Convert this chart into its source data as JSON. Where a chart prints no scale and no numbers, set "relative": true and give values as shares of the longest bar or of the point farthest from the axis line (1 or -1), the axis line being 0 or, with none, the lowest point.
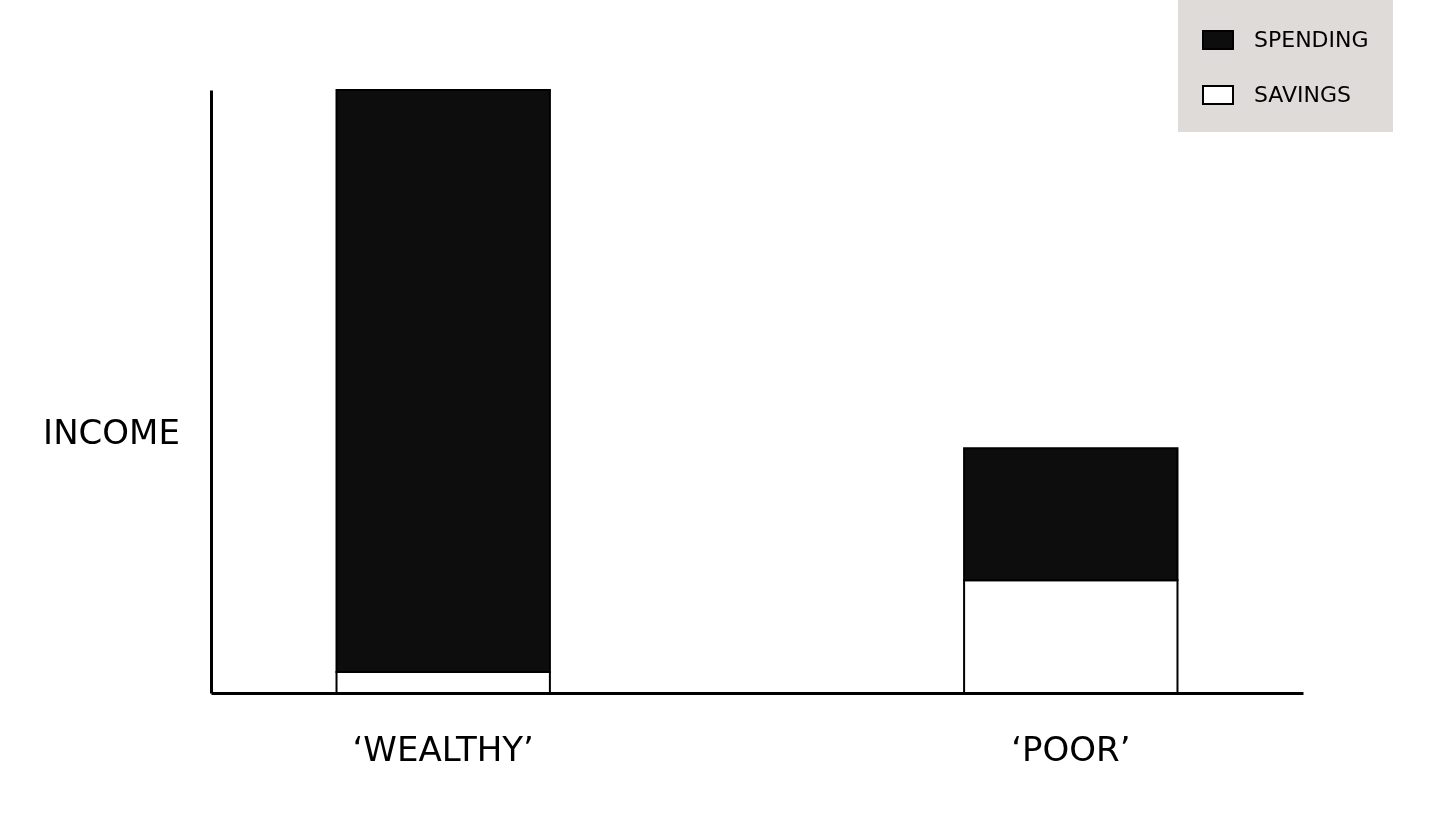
{
  "chart_data": {
    "type": "bar",
    "ylabel": "INCOME",
    "categories": [
      "‘WEALTHY’",
      "‘POOR’"
    ],
    "stacked": true,
    "relative": true,
    "legend": "top right",
    "series": [
      {
        "name": "SAVINGS",
        "color": "#ffffff",
        "values": [
          0.035,
          0.187
        ]
      },
      {
        "name": "SPENDING",
        "color": "#0d0d0d",
        "values": [
          0.965,
          0.219
        ]
      }
    ]
  }
}
